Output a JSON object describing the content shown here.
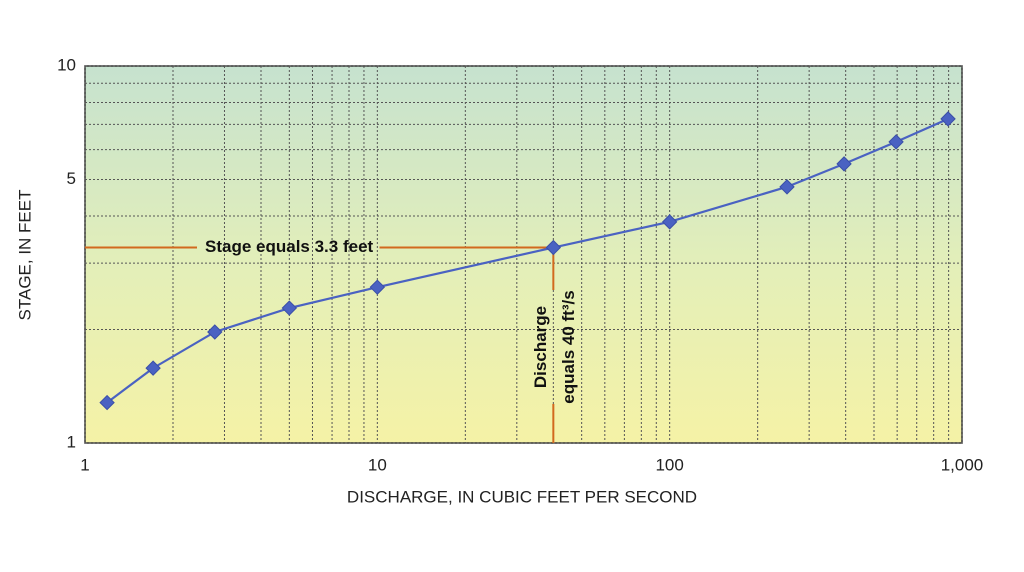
{
  "chart_data": {
    "type": "line",
    "log_x": true,
    "log_y": true,
    "x_label": "DISCHARGE, IN CUBIC FEET PER SECOND",
    "y_label": "STAGE, IN FEET",
    "series": [
      {
        "color": "#4a62c2",
        "x": [
          1.19,
          1.71,
          2.78,
          5,
          10,
          40,
          100,
          252,
          395,
          595,
          896
        ],
        "values": [
          1.28,
          1.58,
          1.97,
          2.28,
          2.59,
          3.3,
          3.86,
          4.78,
          5.5,
          6.29,
          7.24
        ]
      }
    ],
    "xlim": [
      1,
      1000
    ],
    "ylim": [
      1,
      10
    ],
    "xticks": [
      1,
      10,
      100,
      {
        "value": 1000,
        "label": "1,000"
      }
    ],
    "yticks": [
      1,
      5,
      10
    ],
    "x_minor_grid": [
      2,
      3,
      4,
      5,
      6,
      7,
      8,
      9,
      20,
      30,
      40,
      50,
      60,
      70,
      80,
      90,
      200,
      300,
      400,
      500,
      600,
      700,
      800,
      900
    ],
    "y_minor_grid": [
      2,
      3,
      4,
      6,
      7,
      8,
      9
    ],
    "grid": true,
    "annotations": [
      {
        "text": "Stage equals 3.3 feet",
        "y": 3.3,
        "color": "#d2691e"
      },
      {
        "lines": [
          "Discharge",
          "equals 40 ft³/s"
        ],
        "x": 40,
        "color": "#d2691e"
      }
    ]
  }
}
